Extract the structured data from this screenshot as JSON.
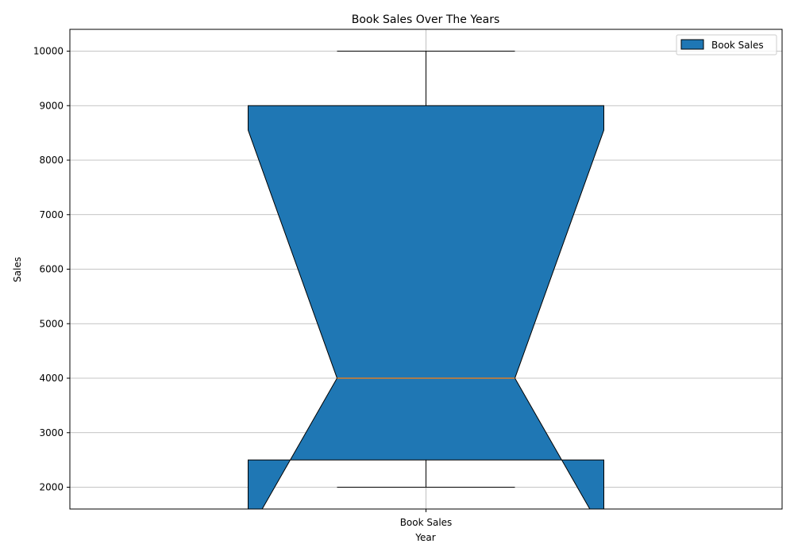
{
  "chart_data": {
    "type": "boxplot",
    "title": "Book Sales Over The Years",
    "xlabel": "Year",
    "ylabel": "Sales",
    "categories": [
      "Book Sales"
    ],
    "series": [
      {
        "name": "Book Sales",
        "whisker_low": 2000,
        "q1": 2500,
        "median": 4000,
        "q3": 9000,
        "whisker_high": 10000,
        "notch_low": 1150,
        "notch_high": 8550,
        "color": "#1f77b4",
        "median_color": "#ff7f0e"
      }
    ],
    "ylim": [
      1600,
      10400
    ],
    "yticks": [
      "2000",
      "3000",
      "4000",
      "5000",
      "6000",
      "7000",
      "8000",
      "9000",
      "10000"
    ],
    "grid": true,
    "notched": true,
    "legend": {
      "placement": "top-right",
      "entries": [
        "Book Sales"
      ]
    }
  }
}
